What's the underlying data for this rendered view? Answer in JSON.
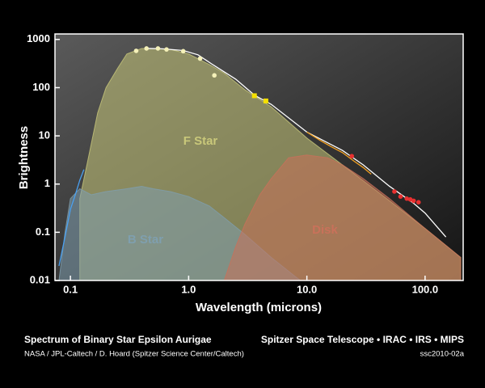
{
  "chart_data": {
    "type": "line",
    "x_label": "Wavelength (microns)",
    "y_label": "Brightness",
    "xscale": "log",
    "yscale": "log",
    "xlim": [
      0.074,
      210
    ],
    "ylim": [
      0.01,
      1300
    ],
    "xticks": [
      0.1,
      {
        "value": 1,
        "label": "1.0"
      },
      {
        "value": 10,
        "label": "10.0"
      },
      {
        "value": 100,
        "label": "100.0"
      }
    ],
    "yticks": [
      1000,
      100,
      10,
      1,
      0.1,
      0.01
    ],
    "series": [
      {
        "type": "area",
        "name": "F Star",
        "color": "#c9c87a",
        "x": [
          0.12,
          0.14,
          0.17,
          0.2,
          0.25,
          0.3,
          0.4,
          0.5,
          0.7,
          1.0,
          1.5,
          2,
          3,
          5,
          10,
          20,
          50,
          100,
          200
        ],
        "values": [
          0.5,
          3,
          30,
          100,
          250,
          500,
          650,
          650,
          620,
          500,
          300,
          200,
          90,
          40,
          9,
          2.5,
          0.45,
          0.12,
          0.03
        ]
      },
      {
        "type": "area",
        "name": "B Star",
        "color": "#7f9fae",
        "x": [
          0.08,
          0.09,
          0.1,
          0.12,
          0.15,
          0.2,
          0.3,
          0.4,
          0.5,
          0.7,
          1,
          1.5,
          2,
          3,
          5,
          8,
          10
        ],
        "values": [
          0.01,
          0.1,
          0.5,
          0.8,
          0.6,
          0.7,
          0.8,
          0.9,
          0.8,
          0.7,
          0.55,
          0.35,
          0.2,
          0.09,
          0.03,
          0.012,
          0.008
        ]
      },
      {
        "type": "area",
        "name": "Disk",
        "color": "#c9715a",
        "x": [
          2,
          2.5,
          3,
          4,
          5,
          7,
          10,
          15,
          20,
          30,
          50,
          100,
          200
        ],
        "values": [
          0.01,
          0.05,
          0.15,
          0.6,
          1.3,
          3.5,
          4,
          3.5,
          2.5,
          1.3,
          0.5,
          0.12,
          0.03
        ]
      },
      {
        "type": "line",
        "color": "#ffffff",
        "x": [
          0.45,
          0.6,
          0.9,
          1.2,
          1.6,
          2.5,
          3.6,
          5,
          10,
          20,
          30,
          50,
          80,
          100,
          150
        ],
        "values": [
          650,
          640,
          590,
          480,
          300,
          150,
          70,
          45,
          12,
          5,
          2.5,
          0.9,
          0.4,
          0.25,
          0.08
        ]
      },
      {
        "type": "line",
        "color": "#f2a020",
        "x": [
          10,
          13,
          16,
          20,
          25,
          30,
          35
        ],
        "values": [
          12,
          8,
          6,
          4.5,
          3,
          2.2,
          1.6
        ]
      },
      {
        "type": "line",
        "color": "#4aa0f0",
        "x": [
          0.08,
          0.09,
          0.1,
          0.11,
          0.12,
          0.13
        ],
        "values": [
          0.02,
          0.08,
          0.3,
          0.6,
          1.2,
          2
        ]
      },
      {
        "type": "scatter",
        "color": "#f4f0b8",
        "x": [
          0.36,
          0.44,
          0.55,
          0.65,
          0.9,
          1.25,
          1.65
        ],
        "values": [
          580,
          650,
          650,
          620,
          570,
          400,
          180
        ]
      },
      {
        "type": "scatter",
        "marker": "square",
        "color": "#f5e000",
        "x": [
          3.6,
          4.5
        ],
        "values": [
          68,
          53
        ]
      },
      {
        "type": "scatter",
        "color": "#e83030",
        "x": [
          24,
          55,
          62,
          70,
          75,
          80,
          88
        ],
        "values": [
          3.8,
          0.7,
          0.55,
          0.5,
          0.48,
          0.45,
          0.42
        ]
      }
    ],
    "footer": [
      "Spectrum of Binary Star Epsilon Aurigae",
      "Spitzer Space Telescope • IRAC • IRS • MIPS",
      "NASA / JPL-Caltech / D. Hoard (Spitzer Science Center/Caltech)",
      "ssc2010-02a"
    ]
  }
}
